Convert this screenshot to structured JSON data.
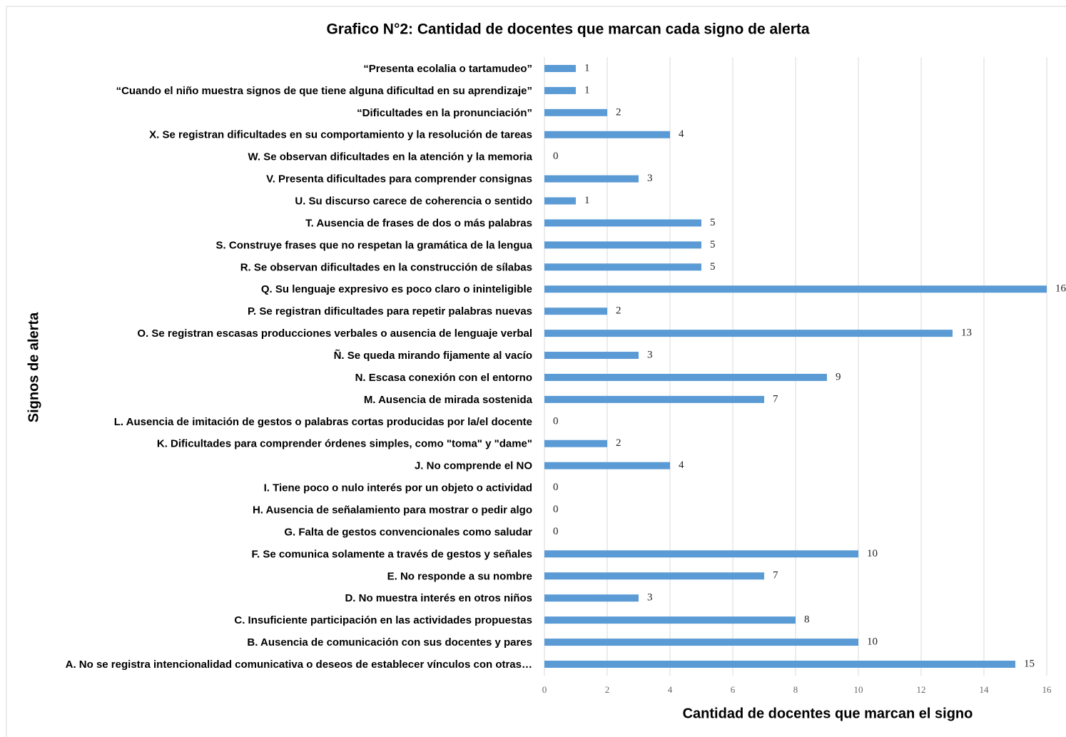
{
  "chart_data": {
    "type": "bar",
    "orientation": "horizontal",
    "title": "Grafico N°2: Cantidad de docentes que marcan cada signo de alerta",
    "x_label": "Cantidad de docentes que marcan el signo",
    "y_label": "Signos de alerta",
    "categories": [
      "“Presenta ecolalia o tartamudeo”",
      "“Cuando el niño muestra signos de que tiene alguna dificultad en su aprendizaje”",
      "“Dificultades en la pronunciación”",
      "X. Se registran dificultades en su comportamiento y la resolución de tareas",
      "W. Se observan dificultades en la atención y la memoria",
      "V. Presenta dificultades para comprender consignas",
      "U. Su discurso carece de coherencia o sentido",
      "T. Ausencia de frases de dos o más palabras",
      "S. Construye frases que no respetan la gramática de la lengua",
      "R. Se observan dificultades en la construcción de sílabas",
      "Q. Su lenguaje expresivo es poco claro o ininteligible",
      "P. Se registran dificultades para repetir palabras nuevas",
      "O. Se registran escasas producciones verbales o ausencia de lenguaje verbal",
      "Ñ. Se queda mirando fijamente al vacío",
      "N. Escasa conexión con el entorno",
      "M. Ausencia de mirada sostenida",
      "L. Ausencia de imitación de gestos o palabras cortas producidas por la/el docente",
      "K. Dificultades para comprender órdenes simples, como \"toma\" y \"dame\"",
      "J. No comprende el NO",
      "I. Tiene poco o nulo interés por un objeto o actividad",
      "H. Ausencia de señalamiento para mostrar o pedir algo",
      "G. Falta de gestos convencionales como saludar",
      "F. Se comunica solamente a través de gestos y señales",
      "E. No responde a su nombre",
      "D. No muestra interés en otros niños",
      "C. Insuficiente participación en las actividades propuestas",
      "B. Ausencia de comunicación con sus docentes y pares",
      "A. No se registra intencionalidad comunicativa o deseos de establecer vínculos con otras…"
    ],
    "values": [
      1,
      1,
      2,
      4,
      0,
      3,
      1,
      5,
      5,
      5,
      16,
      2,
      13,
      3,
      9,
      7,
      0,
      2,
      4,
      0,
      0,
      0,
      10,
      7,
      3,
      8,
      10,
      15
    ],
    "color": "#5b9bd5",
    "xlim": [
      0,
      16
    ],
    "xticks": [
      0,
      2,
      4,
      6,
      8,
      10,
      12,
      14,
      16
    ],
    "grid": true
  }
}
